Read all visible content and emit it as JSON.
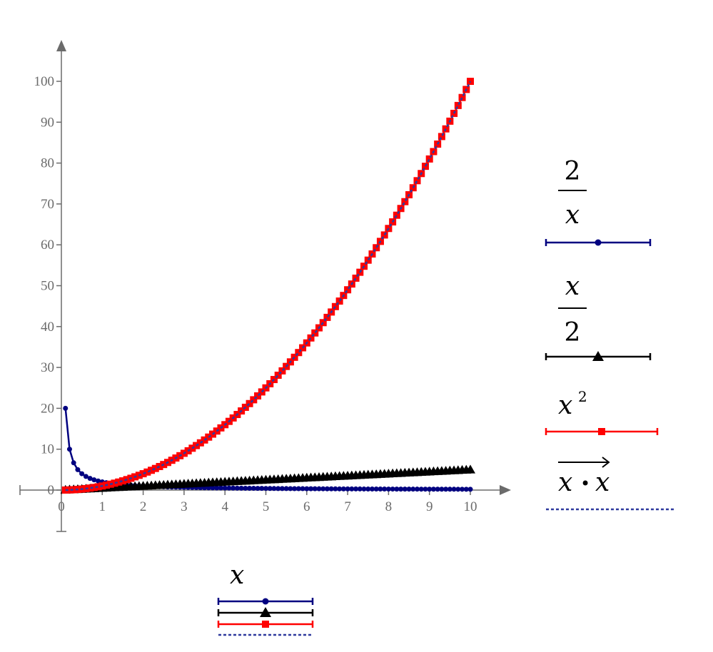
{
  "chart_data": {
    "type": "line",
    "x": {
      "start": 0.1,
      "end": 10,
      "step": 0.1
    },
    "xlim": [
      0,
      10
    ],
    "ylim": [
      -10,
      100
    ],
    "xticks": [
      0,
      1,
      2,
      3,
      4,
      5,
      6,
      7,
      8,
      9,
      10
    ],
    "yticks": [
      0,
      10,
      20,
      30,
      40,
      50,
      60,
      70,
      80,
      90,
      100
    ],
    "xlabel": "x",
    "series": [
      {
        "name": "2/x",
        "formula": "2/x",
        "color": "#000080",
        "marker": "circle",
        "line": "solid"
      },
      {
        "name": "x/2",
        "formula": "x/2",
        "color": "#000000",
        "marker": "triangle",
        "line": "solid"
      },
      {
        "name": "x^2",
        "formula": "x^2",
        "color": "#ff0000",
        "marker": "square",
        "line": "solid"
      },
      {
        "name": "x·x (vectorized)",
        "formula": "x*x",
        "color": "#2f3a9e",
        "marker": "none",
        "line": "dashed"
      }
    ],
    "grid": false,
    "legend": "right"
  },
  "legend": {
    "s1_num": "2",
    "s1_den": "x",
    "s2_num": "x",
    "s2_den": "2",
    "s3_base": "x",
    "s3_exp": "2",
    "s4_left": "x",
    "s4_dot": "•",
    "s4_right": "x"
  },
  "xaxis_label": "x"
}
